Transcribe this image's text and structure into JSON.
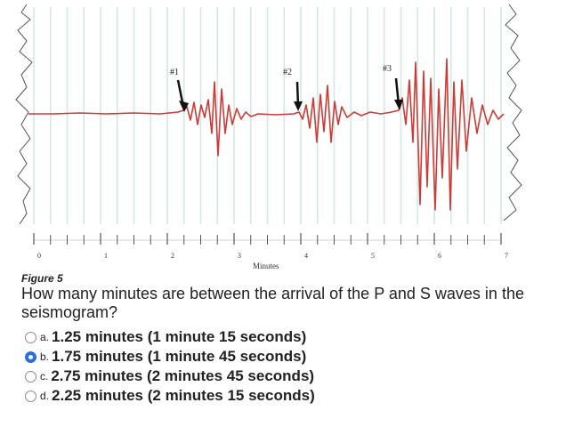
{
  "figure": {
    "arrows": [
      "#1",
      "#2",
      "#3"
    ],
    "axis_ticks": [
      "0",
      "1",
      "2",
      "3",
      "4",
      "5",
      "6",
      "7"
    ],
    "axis_label": "Minutes",
    "caption": "Figure 5"
  },
  "question": {
    "text": "How many minutes are between the arrival of the P and S waves in the seismogram?",
    "options": [
      {
        "letter": "a.",
        "text": "1.25 minutes (1 minute 15 seconds)",
        "selected": false
      },
      {
        "letter": "b.",
        "text": "1.75 minutes (1 minute 45 seconds)",
        "selected": true
      },
      {
        "letter": "c.",
        "text": "2.75 minutes (2 minutes 45 seconds)",
        "selected": false
      },
      {
        "letter": "d.",
        "text": "2.25 minutes (2 minutes 15 seconds)",
        "selected": false
      }
    ]
  },
  "colors": {
    "trace": "#cc3b35",
    "grid": "#d3e8e8",
    "selected": "#2a6fdc"
  }
}
